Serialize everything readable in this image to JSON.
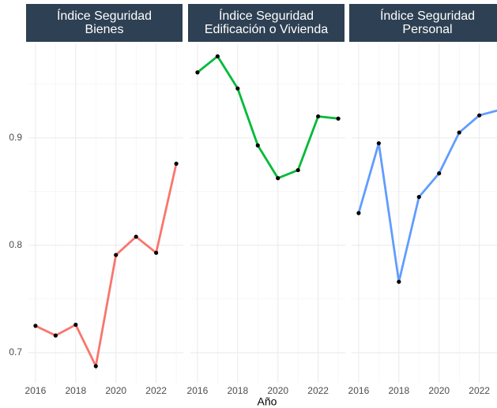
{
  "chart_data": {
    "type": "line",
    "x_label": "Año",
    "x": [
      2016,
      2017,
      2018,
      2019,
      2020,
      2021,
      2022,
      2023
    ],
    "xlim": [
      2015.65,
      2023.35
    ],
    "xticks": [
      2016,
      2018,
      2020,
      2022
    ],
    "ylim": [
      0.672,
      0.988
    ],
    "yticks": [
      0.7,
      0.8,
      0.9
    ],
    "grid": true,
    "series": [
      {
        "name": "Índice Seguridad\nBienes",
        "color": "#f8766d",
        "values": [
          0.725,
          0.716,
          0.726,
          0.6875,
          0.791,
          0.808,
          0.793,
          0.876
        ]
      },
      {
        "name": "Índice Seguridad\nEdificación o Vivienda",
        "color": "#00ba38",
        "values": [
          0.961,
          0.976,
          0.946,
          0.893,
          0.8625,
          0.87,
          0.92,
          0.918
        ]
      },
      {
        "name": "Índice Seguridad\nPersonal",
        "color": "#619cff",
        "values": [
          0.83,
          0.895,
          0.766,
          0.845,
          0.867,
          0.905,
          0.921,
          0.926
        ]
      }
    ]
  }
}
